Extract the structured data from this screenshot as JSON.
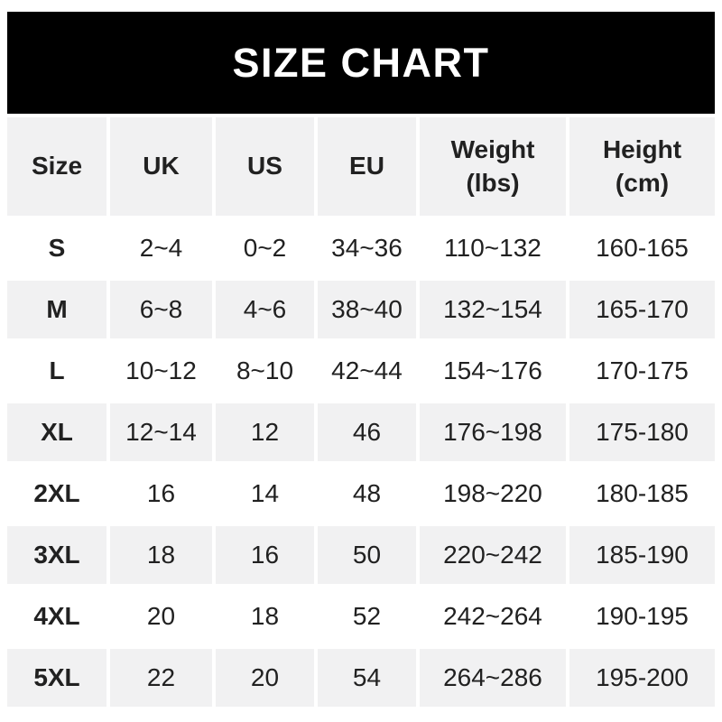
{
  "banner": {
    "title": "SIZE CHART"
  },
  "header_display": [
    "Size",
    "UK",
    "US",
    "EU",
    "Weight\n(lbs)",
    "Height\n(cm)"
  ],
  "chart_data": {
    "type": "table",
    "title": "SIZE CHART",
    "columns": [
      "Size",
      "UK",
      "US",
      "EU",
      "Weight (lbs)",
      "Height (cm)"
    ],
    "rows": [
      [
        "S",
        "2~4",
        "0~2",
        "34~36",
        "110~132",
        "160-165"
      ],
      [
        "M",
        "6~8",
        "4~6",
        "38~40",
        "132~154",
        "165-170"
      ],
      [
        "L",
        "10~12",
        "8~10",
        "42~44",
        "154~176",
        "170-175"
      ],
      [
        "XL",
        "12~14",
        "12",
        "46",
        "176~198",
        "175-180"
      ],
      [
        "2XL",
        "16",
        "14",
        "48",
        "198~220",
        "180-185"
      ],
      [
        "3XL",
        "18",
        "16",
        "50",
        "220~242",
        "185-190"
      ],
      [
        "4XL",
        "20",
        "18",
        "52",
        "242~264",
        "190-195"
      ],
      [
        "5XL",
        "22",
        "20",
        "54",
        "264~286",
        "195-200"
      ]
    ],
    "layout": {
      "striped_rows": true,
      "stripe_color": "#f1f1f2",
      "grid_gap_color": "#ffffff"
    }
  },
  "colors": {
    "banner_bg": "#000000",
    "banner_text": "#ffffff",
    "stripe_bg": "#f1f1f2",
    "row_bg": "#ffffff",
    "text": "#212121",
    "page_bg": "#ffffff"
  }
}
